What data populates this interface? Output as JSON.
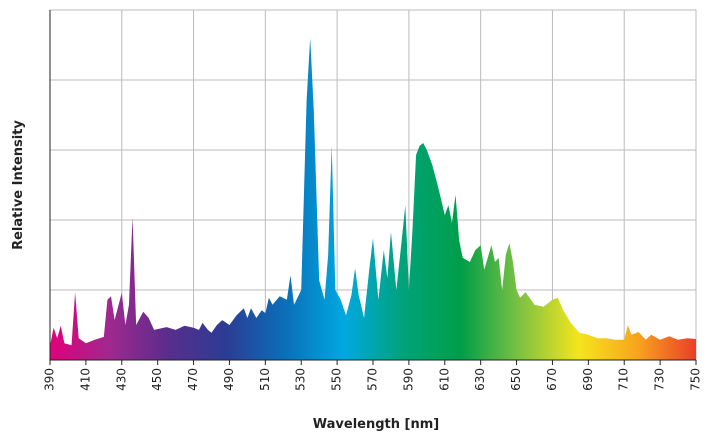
{
  "chart_data": {
    "type": "area",
    "x_label": "Wavelength [nm]",
    "y_label": "Relative Intensity",
    "x": [
      390,
      392,
      394,
      396,
      398,
      402,
      404,
      406,
      410,
      415,
      420,
      422,
      424,
      426,
      430,
      432,
      434,
      436,
      438,
      442,
      445,
      448,
      455,
      460,
      465,
      470,
      473,
      475,
      478,
      480,
      483,
      486,
      490,
      494,
      498,
      500,
      502,
      505,
      508,
      510,
      512,
      514,
      518,
      522,
      524,
      526,
      530,
      533,
      535,
      537,
      540,
      543,
      545,
      547,
      549,
      552,
      555,
      558,
      560,
      562,
      565,
      568,
      570,
      573,
      576,
      578,
      580,
      583,
      586,
      588,
      590,
      592,
      594,
      596,
      598,
      600,
      603,
      606,
      608,
      610,
      612,
      614,
      616,
      618,
      620,
      624,
      627,
      630,
      632,
      636,
      638,
      640,
      642,
      644,
      646,
      648,
      650,
      652,
      655,
      660,
      665,
      670,
      673,
      676,
      680,
      685,
      690,
      695,
      700,
      705,
      710,
      712,
      714,
      718,
      722,
      725,
      730,
      735,
      740,
      745,
      750
    ],
    "values": [
      0.2,
      0.46,
      0.31,
      0.49,
      0.24,
      0.21,
      0.97,
      0.31,
      0.24,
      0.29,
      0.33,
      0.86,
      0.91,
      0.57,
      0.96,
      0.5,
      0.79,
      2.04,
      0.5,
      0.69,
      0.6,
      0.43,
      0.47,
      0.43,
      0.49,
      0.46,
      0.43,
      0.53,
      0.43,
      0.39,
      0.5,
      0.57,
      0.5,
      0.64,
      0.74,
      0.6,
      0.74,
      0.6,
      0.71,
      0.67,
      0.89,
      0.79,
      0.91,
      0.86,
      1.21,
      0.79,
      1.0,
      3.71,
      4.6,
      3.57,
      1.14,
      0.86,
      1.5,
      3.07,
      1.0,
      0.86,
      0.64,
      0.93,
      1.31,
      0.93,
      0.6,
      1.31,
      1.74,
      0.86,
      1.57,
      1.17,
      1.83,
      1.0,
      1.71,
      2.21,
      1.0,
      1.86,
      2.93,
      3.06,
      3.1,
      3.0,
      2.79,
      2.5,
      2.29,
      2.07,
      2.21,
      1.96,
      2.36,
      1.71,
      1.46,
      1.4,
      1.57,
      1.64,
      1.29,
      1.64,
      1.4,
      1.46,
      1.0,
      1.5,
      1.67,
      1.4,
      1.0,
      0.89,
      0.97,
      0.79,
      0.76,
      0.86,
      0.89,
      0.71,
      0.54,
      0.39,
      0.36,
      0.31,
      0.31,
      0.29,
      0.29,
      0.5,
      0.36,
      0.4,
      0.29,
      0.36,
      0.29,
      0.34,
      0.29,
      0.31,
      0.3
    ],
    "xlim": [
      390,
      750
    ],
    "ylim": [
      0,
      5
    ],
    "xticks": [
      390,
      410,
      430,
      450,
      470,
      490,
      510,
      530,
      550,
      570,
      590,
      610,
      630,
      650,
      670,
      690,
      710,
      730,
      750
    ],
    "xgrid": [
      390,
      430,
      470,
      510,
      550,
      590,
      630,
      670,
      710,
      750
    ],
    "ygrid": [
      0,
      1,
      2,
      3,
      4,
      5
    ],
    "gradient": [
      "#e2007a",
      "#a0288e",
      "#5a2d8c",
      "#2b3c95",
      "#0a6fb8",
      "#00a8e1",
      "#00a37a",
      "#009e48",
      "#7dc242",
      "#f4e51c",
      "#f8a51b",
      "#ea3e2a"
    ]
  }
}
